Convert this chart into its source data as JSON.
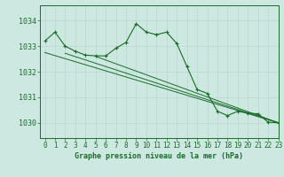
{
  "title": "Graphe pression niveau de la mer (hPa)",
  "background_color": "#cce8e0",
  "grid_color": "#b8d8d0",
  "line_color": "#1a6b2a",
  "xlim": [
    -0.5,
    23
  ],
  "ylim": [
    1029.4,
    1034.6
  ],
  "yticks": [
    1030,
    1031,
    1032,
    1033,
    1034
  ],
  "xticks": [
    0,
    1,
    2,
    3,
    4,
    5,
    6,
    7,
    8,
    9,
    10,
    11,
    12,
    13,
    14,
    15,
    16,
    17,
    18,
    19,
    20,
    21,
    22,
    23
  ],
  "series": [
    [
      0,
      1033.2
    ],
    [
      1,
      1033.55
    ],
    [
      2,
      1033.0
    ],
    [
      3,
      1032.8
    ],
    [
      4,
      1032.65
    ],
    [
      5,
      1032.62
    ],
    [
      6,
      1032.62
    ],
    [
      7,
      1032.92
    ],
    [
      8,
      1033.15
    ],
    [
      9,
      1033.88
    ],
    [
      10,
      1033.55
    ],
    [
      11,
      1033.45
    ],
    [
      12,
      1033.55
    ],
    [
      13,
      1033.1
    ],
    [
      14,
      1032.2
    ],
    [
      15,
      1031.3
    ],
    [
      16,
      1031.15
    ],
    [
      17,
      1030.45
    ],
    [
      18,
      1030.28
    ],
    [
      19,
      1030.45
    ],
    [
      20,
      1030.38
    ],
    [
      21,
      1030.35
    ],
    [
      22,
      1030.02
    ],
    [
      23,
      1030.0
    ]
  ],
  "trend_series": [
    [
      0,
      1032.75
    ],
    [
      23,
      1030.0
    ]
  ],
  "trend2_series": [
    [
      2,
      1032.72
    ],
    [
      23,
      1030.0
    ]
  ],
  "trend3_series": [
    [
      5,
      1032.6
    ],
    [
      23,
      1030.0
    ]
  ]
}
